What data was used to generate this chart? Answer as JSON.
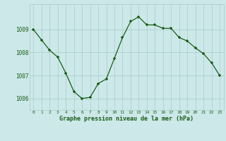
{
  "x": [
    0,
    1,
    2,
    3,
    4,
    5,
    6,
    7,
    8,
    9,
    10,
    11,
    12,
    13,
    14,
    15,
    16,
    17,
    18,
    19,
    20,
    21,
    22,
    23
  ],
  "y": [
    1009.0,
    1008.55,
    1008.1,
    1007.8,
    1007.1,
    1006.3,
    1006.0,
    1006.05,
    1006.65,
    1006.85,
    1007.75,
    1008.65,
    1009.35,
    1009.55,
    1009.2,
    1009.2,
    1009.05,
    1009.05,
    1008.65,
    1008.5,
    1008.2,
    1007.95,
    1007.55,
    1007.0
  ],
  "line_color": "#1a5c1a",
  "marker_color": "#1a5c1a",
  "bg_color": "#cce8e8",
  "grid_color": "#aacccc",
  "title": "Graphe pression niveau de la mer (hPa)",
  "title_color": "#1a5c1a",
  "ylim": [
    1005.5,
    1010.1
  ],
  "yticks": [
    1006,
    1007,
    1008,
    1009
  ],
  "xlim": [
    -0.5,
    23.5
  ],
  "xticks": [
    0,
    1,
    2,
    3,
    4,
    5,
    6,
    7,
    8,
    9,
    10,
    11,
    12,
    13,
    14,
    15,
    16,
    17,
    18,
    19,
    20,
    21,
    22,
    23
  ]
}
